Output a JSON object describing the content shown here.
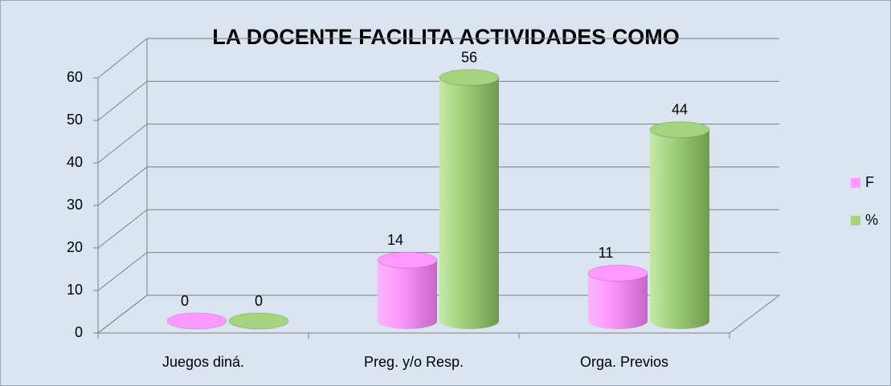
{
  "chart_data": {
    "type": "bar3d",
    "title": "LA DOCENTE FACILITA ACTIVIDADES COMO",
    "categories": [
      "Juegos diná.",
      "Preg. y/o Resp.",
      "Orga. Previos"
    ],
    "series": [
      {
        "name": "F",
        "color": "#ff99ff",
        "values": [
          0,
          14,
          11
        ]
      },
      {
        "name": "%",
        "color": "#a4d47e",
        "values": [
          0,
          56,
          44
        ]
      }
    ],
    "ylim": [
      0,
      60
    ],
    "yticks": [
      0,
      10,
      20,
      30,
      40,
      50,
      60
    ],
    "grid": true,
    "legend": "right"
  }
}
